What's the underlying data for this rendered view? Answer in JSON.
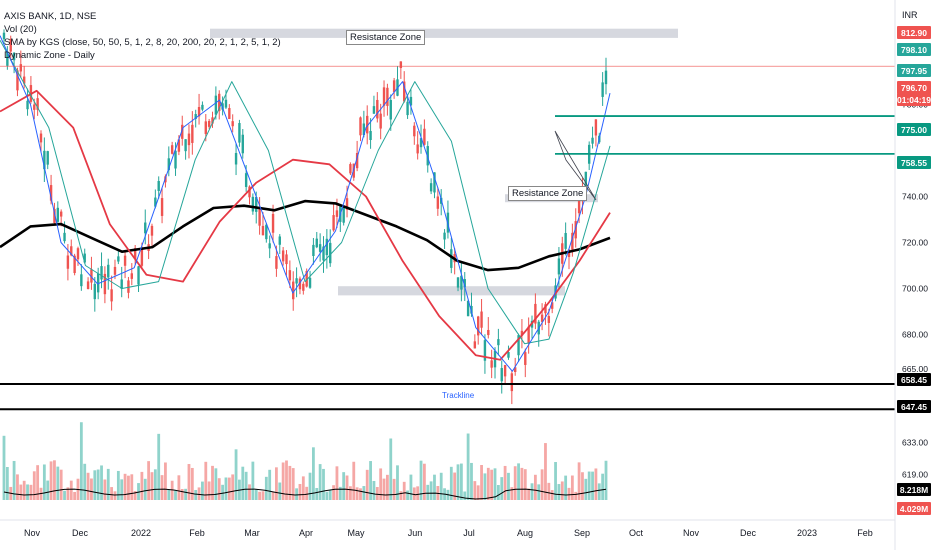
{
  "chart_data": {
    "type": "candlestick",
    "title": "AXIS BANK, 1D, NSE",
    "legend": [
      "AXIS BANK, 1D, NSE",
      "Vol (20)",
      "SMA by KGS (close, 50, 50, 5, 1, 2, 8, 20, 200, 20, 2, 1, 2, 5, 1, 2)",
      "Dynamic Zone - Daily"
    ],
    "currency": "INR",
    "ylim": [
      608,
      822
    ],
    "y_ticks": [
      619,
      633,
      647.45,
      658.45,
      665,
      680,
      700,
      720,
      740,
      758.55,
      775,
      780,
      796.7,
      797.95,
      798.1,
      812.9
    ],
    "y_tick_labels": [
      "619.00",
      "633.00",
      "",
      "",
      "665.00",
      "680.00",
      "700.00",
      "720.00",
      "740.00",
      "",
      "",
      "780.00",
      "",
      "",
      "",
      ""
    ],
    "x_labels": [
      "Nov",
      "Dec",
      "2022",
      "Feb",
      "Mar",
      "Apr",
      "May",
      "Jun",
      "Jul",
      "Aug",
      "Sep",
      "Oct",
      "Nov",
      "Dec",
      "2023",
      "Feb"
    ],
    "price_tags": [
      {
        "label": "812.90",
        "color": "#ef5350"
      },
      {
        "label": "798.10",
        "color": "#26a69a"
      },
      {
        "label": "797.95",
        "color": "#26a69a"
      },
      {
        "label": "796.70",
        "color": "#ef5350"
      },
      {
        "label": "01:04:19",
        "color": "#ef5350"
      },
      {
        "label": "775.00",
        "color": "#089981"
      },
      {
        "label": "758.55",
        "color": "#089981"
      },
      {
        "label": "658.45",
        "color": "#000000"
      },
      {
        "label": "647.45",
        "color": "#000000"
      },
      {
        "label": "8.218M",
        "color": "#000000"
      },
      {
        "label": "4.029M",
        "color": "#ef5350"
      }
    ],
    "horizontal_lines": [
      {
        "value": 775.0,
        "color": "#089981"
      },
      {
        "value": 758.55,
        "color": "#089981"
      },
      {
        "value": 658.45,
        "color": "#000000"
      },
      {
        "value": 647.45,
        "color": "#000000"
      },
      {
        "value": 796.7,
        "color": "#ef5350"
      }
    ],
    "zones": [
      {
        "label": "Resistance Zone",
        "y_top": 813,
        "y_bottom": 809
      },
      {
        "label": "",
        "y_top": 701,
        "y_bottom": 697
      },
      {
        "label": "Resistance Zone",
        "y_top": 741,
        "y_bottom": 738
      }
    ],
    "annotation": "Trackline",
    "series": [
      {
        "name": "SMA 200",
        "color": "#000000",
        "points": [
          [
            0,
            718
          ],
          [
            0.05,
            727
          ],
          [
            0.1,
            728
          ],
          [
            0.15,
            722
          ],
          [
            0.2,
            716
          ],
          [
            0.25,
            718
          ],
          [
            0.3,
            727
          ],
          [
            0.35,
            735
          ],
          [
            0.4,
            736
          ],
          [
            0.45,
            734
          ],
          [
            0.5,
            738
          ],
          [
            0.55,
            737
          ],
          [
            0.6,
            732
          ],
          [
            0.65,
            727
          ],
          [
            0.7,
            721
          ],
          [
            0.75,
            712
          ],
          [
            0.8,
            708
          ],
          [
            0.85,
            709
          ],
          [
            0.9,
            714
          ],
          [
            0.95,
            717
          ],
          [
            1.0,
            722
          ]
        ]
      },
      {
        "name": "SMA 50",
        "color": "#e53945",
        "points": [
          [
            0,
            777
          ],
          [
            0.06,
            786
          ],
          [
            0.12,
            770
          ],
          [
            0.18,
            728
          ],
          [
            0.24,
            706
          ],
          [
            0.3,
            703
          ],
          [
            0.36,
            729
          ],
          [
            0.42,
            746
          ],
          [
            0.48,
            756
          ],
          [
            0.54,
            754
          ],
          [
            0.6,
            740
          ],
          [
            0.66,
            712
          ],
          [
            0.72,
            688
          ],
          [
            0.78,
            671
          ],
          [
            0.82,
            669
          ],
          [
            0.86,
            681
          ],
          [
            0.9,
            694
          ],
          [
            0.95,
            712
          ],
          [
            1.0,
            733
          ]
        ]
      },
      {
        "name": "SMA 20",
        "color": "#26a69a",
        "points": [
          [
            0,
            808
          ],
          [
            0.08,
            770
          ],
          [
            0.14,
            710
          ],
          [
            0.2,
            700
          ],
          [
            0.26,
            703
          ],
          [
            0.32,
            756
          ],
          [
            0.38,
            790
          ],
          [
            0.44,
            760
          ],
          [
            0.5,
            703
          ],
          [
            0.56,
            720
          ],
          [
            0.62,
            760
          ],
          [
            0.68,
            790
          ],
          [
            0.74,
            764
          ],
          [
            0.8,
            700
          ],
          [
            0.86,
            676
          ],
          [
            0.9,
            678
          ],
          [
            0.94,
            707
          ],
          [
            1.0,
            762
          ]
        ]
      },
      {
        "name": "SMA 8",
        "color": "#2962ff",
        "points": [
          [
            0,
            810
          ],
          [
            0.05,
            780
          ],
          [
            0.1,
            720
          ],
          [
            0.16,
            702
          ],
          [
            0.22,
            709
          ],
          [
            0.3,
            770
          ],
          [
            0.36,
            782
          ],
          [
            0.42,
            740
          ],
          [
            0.48,
            698
          ],
          [
            0.55,
            725
          ],
          [
            0.6,
            770
          ],
          [
            0.66,
            790
          ],
          [
            0.72,
            742
          ],
          [
            0.78,
            683
          ],
          [
            0.84,
            664
          ],
          [
            0.9,
            690
          ],
          [
            0.96,
            740
          ],
          [
            1.0,
            785
          ]
        ]
      }
    ]
  }
}
